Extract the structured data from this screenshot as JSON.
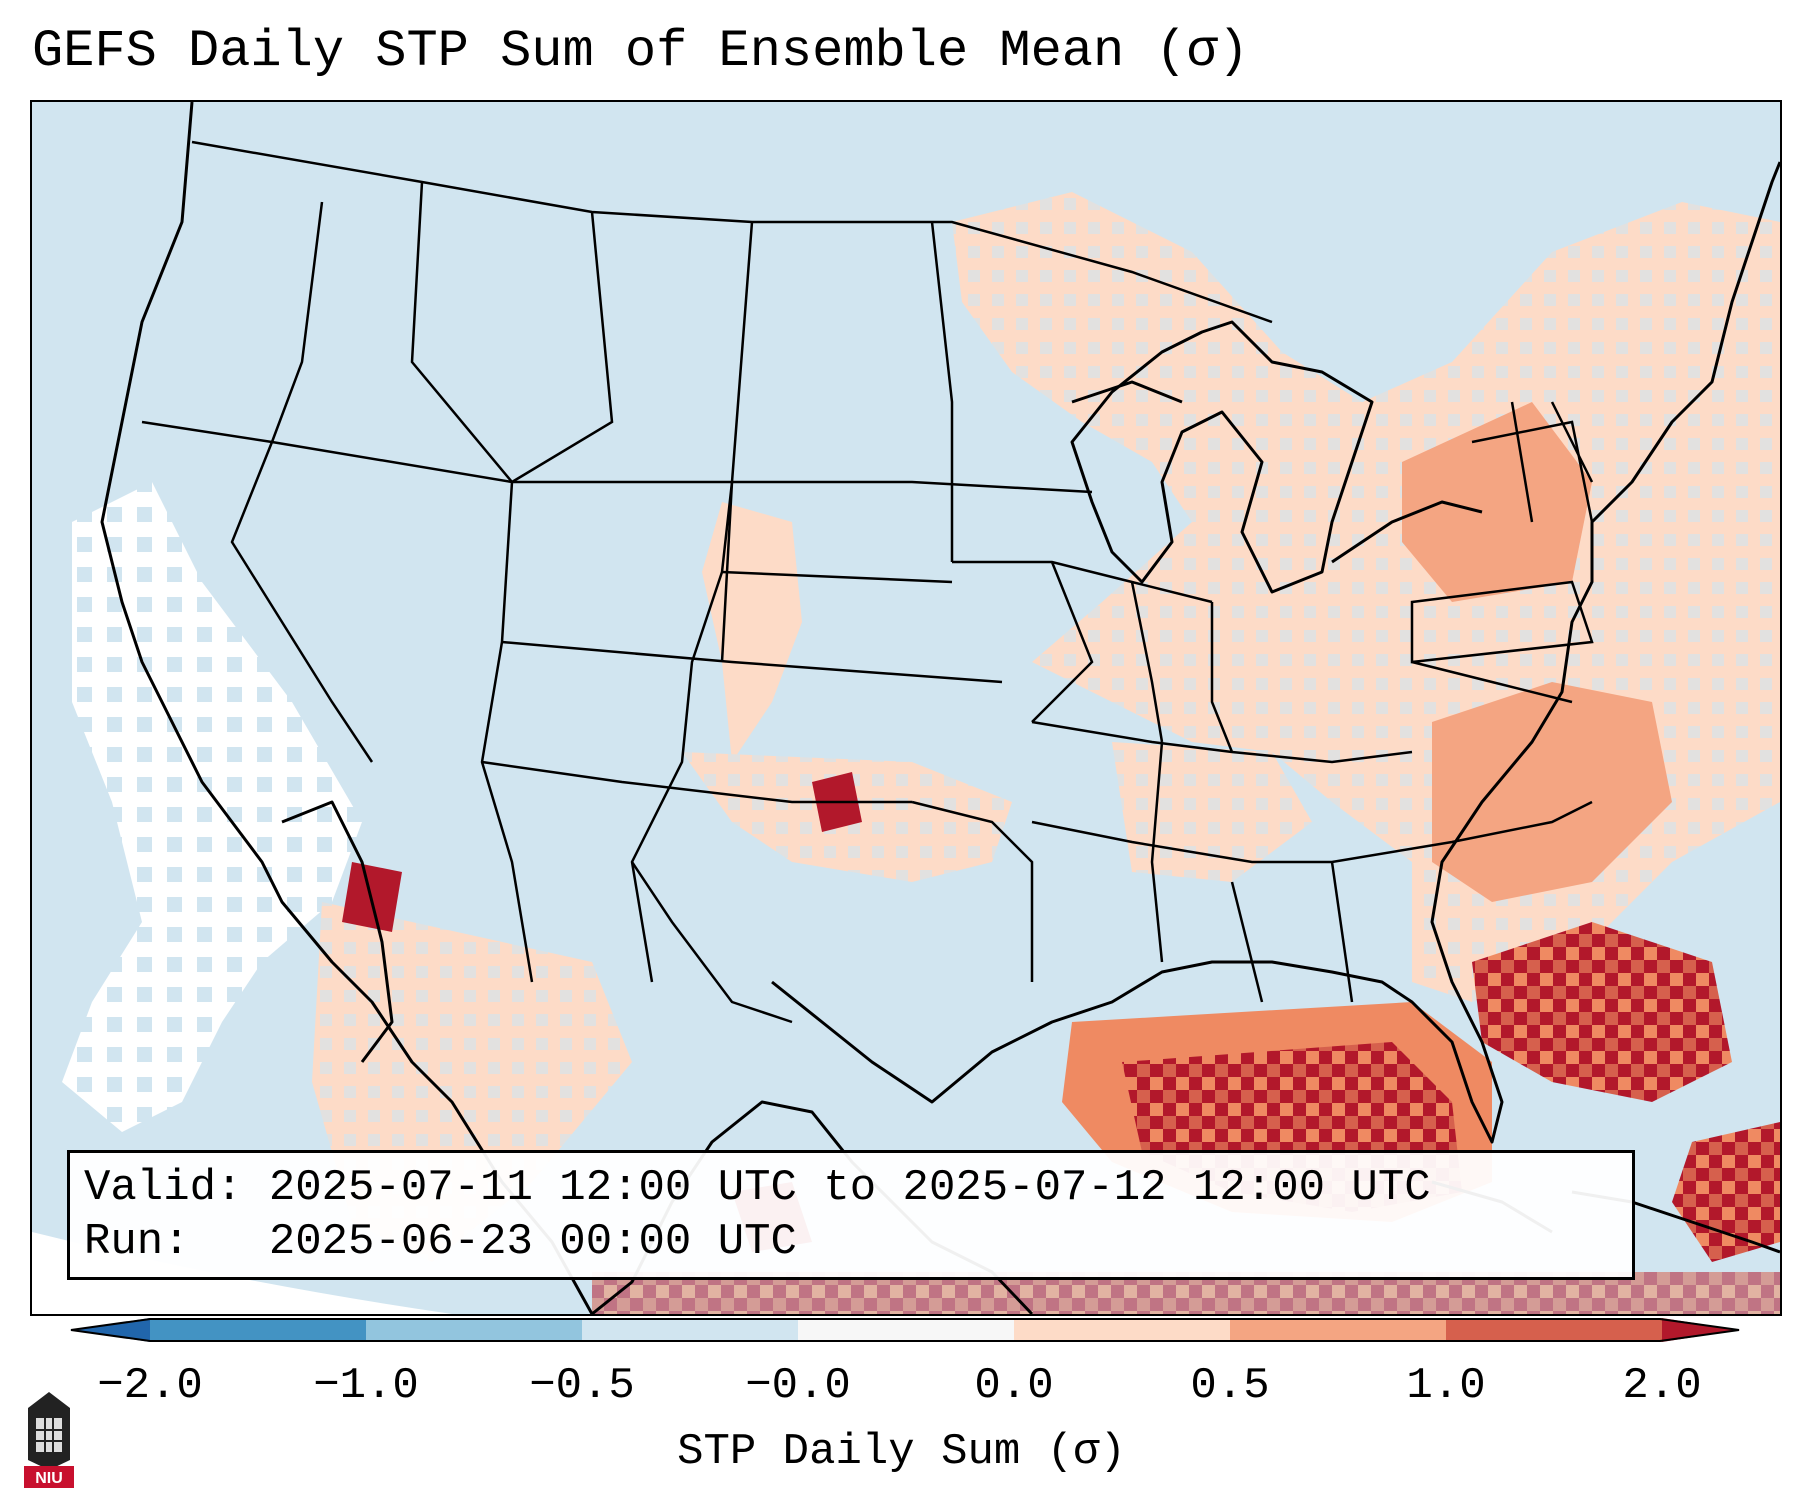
{
  "title": "GEFS Daily STP Sum of Ensemble Mean (σ)",
  "info_box": {
    "valid_label": "Valid:",
    "valid_value": "2025-07-11 12:00 UTC to 2025-07-12 12:00 UTC",
    "run_label": "Run:",
    "run_value": "2025-06-23 00:00 UTC"
  },
  "colorbar": {
    "label": "STP Daily Sum (σ)",
    "ticks": [
      "−2.0",
      "−1.0",
      "−0.5",
      "−0.0",
      "0.0",
      "0.5",
      "1.0",
      "2.0"
    ],
    "colors": [
      "#4393c3",
      "#92c5de",
      "#d1e5f0",
      "#f7f7f7",
      "#fddbc7",
      "#f4a582",
      "#d6604d"
    ],
    "extend_low_color": "#2166ac",
    "extend_high_color": "#b2182b"
  },
  "map": {
    "background_color": "#d1e5f0",
    "boundary_color": "#000000",
    "high_regions": [
      "Gulf of Mexico",
      "Florida",
      "Northeast",
      "Atlantic offshore"
    ]
  },
  "logo": {
    "text": "NIU",
    "name": "niu-logo"
  }
}
